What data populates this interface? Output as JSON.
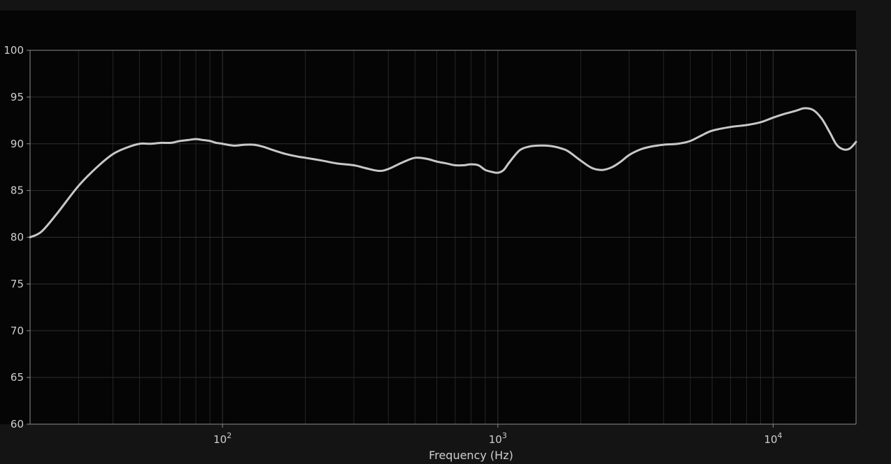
{
  "chart_data": {
    "type": "line",
    "title": "",
    "xlabel": "Frequency (Hz)",
    "ylabel": "",
    "xscale": "log",
    "xlim": [
      20,
      20000
    ],
    "ylim": [
      60,
      100
    ],
    "grid": true,
    "yticks": [
      {
        "value": 60,
        "label": "60"
      },
      {
        "value": 65,
        "label": "65"
      },
      {
        "value": 70,
        "label": "70"
      },
      {
        "value": 75,
        "label": "75"
      },
      {
        "value": 80,
        "label": "80"
      },
      {
        "value": 85,
        "label": "85"
      },
      {
        "value": 90,
        "label": "90"
      },
      {
        "value": 95,
        "label": "95"
      },
      {
        "value": 100,
        "label": "100"
      }
    ],
    "xticks": [
      {
        "value": 100,
        "base": "10",
        "exp": "2"
      },
      {
        "value": 1000,
        "base": "10",
        "exp": "3"
      },
      {
        "value": 10000,
        "base": "10",
        "exp": "4"
      }
    ],
    "colors": {
      "background": "#141414",
      "plot_background": "#050505",
      "grid": "#2e2e2e",
      "axes": "#8a8a8a",
      "line": "#c8c8c8"
    },
    "series": [
      {
        "x": [
          20,
          22,
          25,
          30,
          35,
          40,
          45,
          50,
          55,
          60,
          65,
          70,
          75,
          80,
          85,
          90,
          95,
          100,
          110,
          120,
          130,
          140,
          150,
          170,
          190,
          200,
          230,
          260,
          300,
          330,
          370,
          400,
          450,
          500,
          550,
          600,
          650,
          700,
          750,
          800,
          850,
          900,
          950,
          1000,
          1050,
          1100,
          1200,
          1300,
          1400,
          1500,
          1600,
          1700,
          1800,
          2000,
          2200,
          2400,
          2600,
          2800,
          3000,
          3300,
          3600,
          4000,
          4500,
          5000,
          5500,
          6000,
          7000,
          8000,
          9000,
          10000,
          11000,
          12000,
          13000,
          14000,
          15000,
          16000,
          17000,
          18000,
          19000,
          20000
        ],
        "y": [
          80.0,
          80.6,
          82.5,
          85.5,
          87.5,
          88.9,
          89.6,
          90.0,
          90.0,
          90.1,
          90.1,
          90.3,
          90.4,
          90.5,
          90.4,
          90.3,
          90.1,
          90.0,
          89.8,
          89.9,
          89.9,
          89.7,
          89.4,
          88.9,
          88.6,
          88.5,
          88.2,
          87.9,
          87.7,
          87.4,
          87.1,
          87.3,
          88.0,
          88.5,
          88.4,
          88.1,
          87.9,
          87.7,
          87.7,
          87.8,
          87.7,
          87.2,
          87.0,
          86.9,
          87.2,
          88.0,
          89.3,
          89.7,
          89.8,
          89.8,
          89.7,
          89.5,
          89.2,
          88.2,
          87.4,
          87.2,
          87.5,
          88.1,
          88.8,
          89.4,
          89.7,
          89.9,
          90.0,
          90.3,
          90.9,
          91.4,
          91.8,
          92.0,
          92.3,
          92.8,
          93.2,
          93.5,
          93.8,
          93.6,
          92.7,
          91.3,
          89.9,
          89.4,
          89.5,
          90.2
        ]
      }
    ]
  }
}
